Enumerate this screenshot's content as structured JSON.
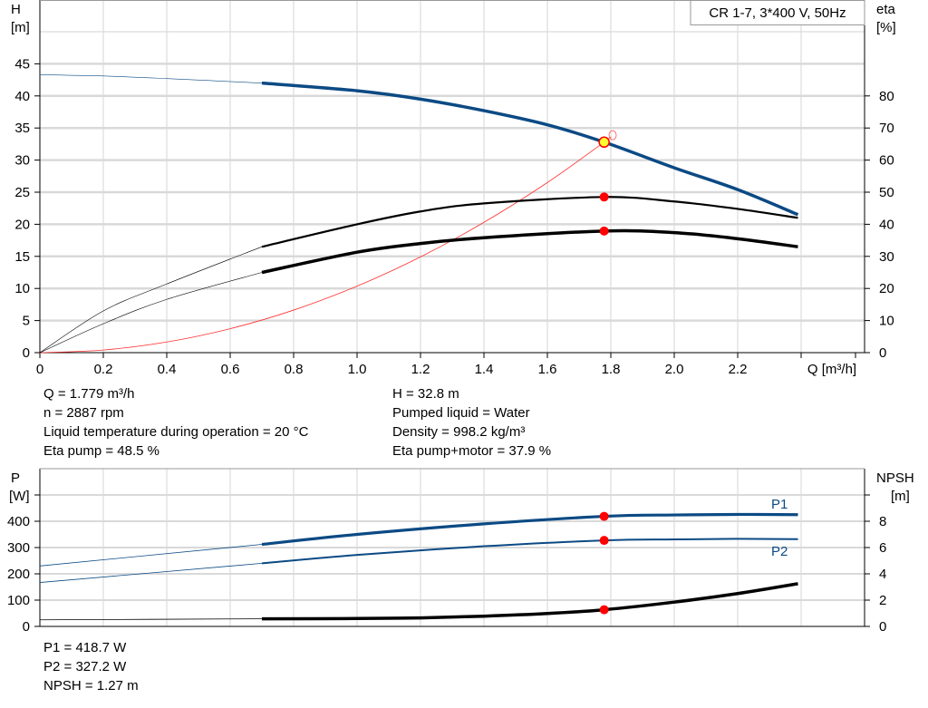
{
  "chart_data": [
    {
      "type": "line",
      "title": "CR 1-7, 3*400 V, 50Hz",
      "xlabel": "Q [m³/h]",
      "ylabel_left": [
        "H",
        "[m]"
      ],
      "ylabel_right": [
        "eta",
        "[%]"
      ],
      "xlim": [
        0,
        2.6
      ],
      "ylim_left": [
        0,
        50
      ],
      "ylim_right": [
        0,
        100
      ],
      "x_ticks": [
        "0",
        "0.2",
        "0.4",
        "0.6",
        "0.8",
        "1.0",
        "1.2",
        "1.4",
        "1.6",
        "1.8",
        "2.0",
        "2.2"
      ],
      "y_ticks_left": [
        "0",
        "5",
        "10",
        "15",
        "20",
        "25",
        "30",
        "35",
        "40",
        "45"
      ],
      "y_ticks_right": [
        "0",
        "10",
        "20",
        "30",
        "40",
        "50",
        "60",
        "70",
        "80"
      ],
      "grid": true,
      "series": [
        {
          "axis": "left",
          "color": "#0b4a84",
          "kind": "H",
          "points": [
            [
              0,
              43.3
            ],
            [
              0.2,
              43.1
            ],
            [
              0.4,
              42.7
            ],
            [
              0.7,
              42.0
            ],
            [
              1.0,
              40.8
            ],
            [
              1.2,
              39.5
            ],
            [
              1.4,
              37.7
            ],
            [
              1.6,
              35.5
            ],
            [
              1.779,
              32.8
            ],
            [
              2.0,
              28.8
            ],
            [
              2.2,
              25.4
            ],
            [
              2.39,
              21.5
            ]
          ]
        },
        {
          "axis": "right",
          "color": "#000000",
          "kind": "eta pump",
          "points": [
            [
              0,
              0
            ],
            [
              0.2,
              13
            ],
            [
              0.4,
              21.4
            ],
            [
              0.7,
              33
            ],
            [
              1.0,
              40
            ],
            [
              1.2,
              44
            ],
            [
              1.4,
              46.5
            ],
            [
              1.779,
              48.5
            ],
            [
              2.0,
              47.1
            ],
            [
              2.2,
              44.8
            ],
            [
              2.39,
              42
            ]
          ]
        },
        {
          "axis": "right",
          "color": "#000000",
          "kind": "eta pump+motor",
          "points": [
            [
              0,
              0
            ],
            [
              0.2,
              9
            ],
            [
              0.4,
              16.6
            ],
            [
              0.7,
              25
            ],
            [
              1.0,
              31.3
            ],
            [
              1.2,
              34
            ],
            [
              1.4,
              35.8
            ],
            [
              1.779,
              37.9
            ],
            [
              2.0,
              37.4
            ],
            [
              2.2,
              35.5
            ],
            [
              2.39,
              33
            ]
          ]
        },
        {
          "axis": "left",
          "color": "#ff0000",
          "kind": "system curve",
          "points": [
            [
              0,
              0
            ],
            [
              0.2,
              0.41
            ],
            [
              0.4,
              1.66
            ],
            [
              0.6,
              3.73
            ],
            [
              0.8,
              6.63
            ],
            [
              1.0,
              10.36
            ],
            [
              1.2,
              14.92
            ],
            [
              1.4,
              20.3
            ],
            [
              1.6,
              26.5
            ],
            [
              1.779,
              32.8
            ],
            [
              1.8,
              33.6
            ]
          ]
        }
      ],
      "operating_point": {
        "Q": 1.779,
        "H": 32.8,
        "eta_pump": 48.5,
        "eta_pump_motor": 37.9
      }
    },
    {
      "type": "line",
      "ylabel_left": [
        "P",
        "[W]"
      ],
      "ylabel_right": [
        "NPSH",
        "[m]"
      ],
      "xlim": [
        0,
        2.6
      ],
      "ylim_left": [
        0,
        600
      ],
      "ylim_right": [
        0,
        12
      ],
      "y_ticks_left": [
        "0",
        "100",
        "200",
        "300",
        "400"
      ],
      "y_ticks_right": [
        "0",
        "2",
        "4",
        "6",
        "8"
      ],
      "grid": true,
      "series": [
        {
          "name": "P1",
          "axis": "left",
          "color": "#0b4a84",
          "points": [
            [
              0,
              230
            ],
            [
              0.7,
              312
            ],
            [
              1.0,
              350
            ],
            [
              1.4,
              390
            ],
            [
              1.779,
              418.7
            ],
            [
              2.0,
              424
            ],
            [
              2.2,
              426
            ],
            [
              2.39,
              425
            ]
          ]
        },
        {
          "name": "P2",
          "axis": "left",
          "color": "#0b4a84",
          "points": [
            [
              0,
              167
            ],
            [
              0.7,
              240
            ],
            [
              1.0,
              272
            ],
            [
              1.4,
              305
            ],
            [
              1.779,
              327.2
            ],
            [
              2.0,
              331
            ],
            [
              2.2,
              333
            ],
            [
              2.39,
              332
            ]
          ]
        },
        {
          "axis": "right",
          "color": "#000000",
          "kind": "NPSH",
          "points": [
            [
              0,
              0.5
            ],
            [
              0.7,
              0.58
            ],
            [
              1.0,
              0.6
            ],
            [
              1.2,
              0.65
            ],
            [
              1.4,
              0.78
            ],
            [
              1.6,
              0.98
            ],
            [
              1.779,
              1.27
            ],
            [
              2.0,
              1.85
            ],
            [
              2.2,
              2.5
            ],
            [
              2.39,
              3.25
            ]
          ]
        }
      ],
      "operating_point": {
        "Q": 1.779,
        "P1": 418.7,
        "P2": 327.2,
        "NPSH": 1.27
      }
    }
  ],
  "info_top_left": [
    "Q = 1.779 m³/h",
    "n = 2887 rpm",
    "Liquid temperature during operation = 20 °C",
    "Eta pump = 48.5 %"
  ],
  "info_top_right": [
    "H = 32.8 m",
    "Pumped liquid = Water",
    "Density = 998.2 kg/m³",
    "Eta pump+motor = 37.9 %"
  ],
  "info_bottom": [
    "P1 = 418.7 W",
    "P2 = 327.2 W",
    "NPSH = 1.27 m"
  ]
}
